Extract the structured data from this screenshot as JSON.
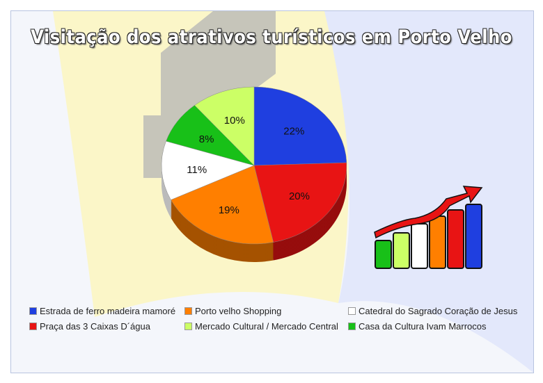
{
  "chart_data": {
    "type": "pie",
    "title": "Visitação dos atrativos turísticos em Porto Velho",
    "legend_position": "bottom",
    "slices": [
      {
        "label": "Estrada de ferro madeira mamoré",
        "value": 22,
        "data_label": "22%",
        "color": "#1f3fe0"
      },
      {
        "label": "Praça das 3 Caixas D´água",
        "value": 20,
        "data_label": "20%",
        "color": "#e81414"
      },
      {
        "label": "Porto velho Shopping",
        "value": 19,
        "data_label": "19%",
        "color": "#ff7f00"
      },
      {
        "label": "Catedral do Sagrado Coração de Jesus",
        "value": 11,
        "data_label": "11%",
        "color": "#ffffff"
      },
      {
        "label": "Casa da Cultura  Ivam Marrocos",
        "value": 8,
        "data_label": "8%",
        "color": "#18c018"
      },
      {
        "label": "Mercado Cultural / Mercado Central",
        "value": 10,
        "data_label": "10%",
        "color": "#ccff66"
      }
    ]
  }
}
